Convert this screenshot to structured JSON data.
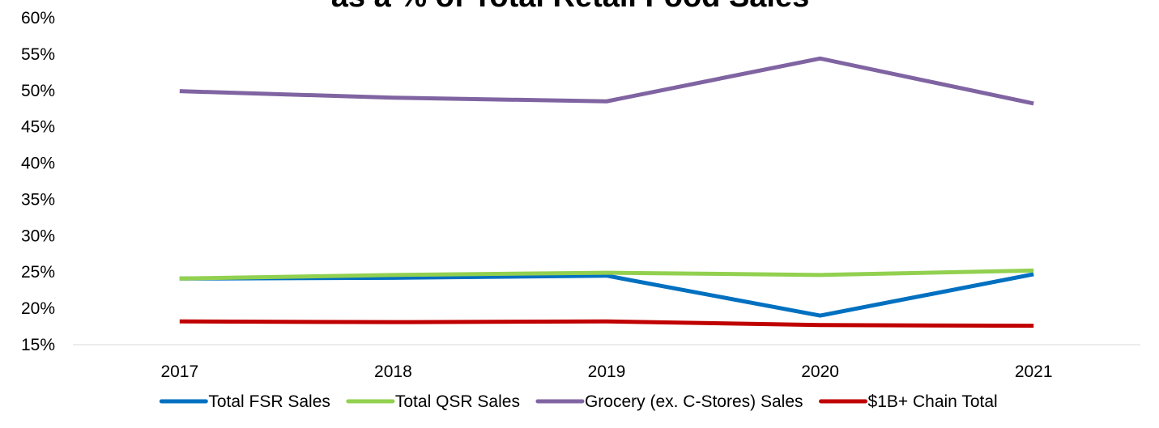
{
  "chart_data": {
    "type": "line",
    "title": "as a % of Total Retail Food Sales",
    "categories": [
      "2017",
      "2018",
      "2019",
      "2020",
      "2021"
    ],
    "series": [
      {
        "name": "Total FSR Sales",
        "color": "#0070c0",
        "values": [
          24.1,
          24.2,
          24.5,
          19.0,
          24.7
        ]
      },
      {
        "name": "Total QSR Sales",
        "color": "#92d050",
        "values": [
          24.1,
          24.6,
          24.9,
          24.6,
          25.2
        ]
      },
      {
        "name": "Grocery (ex. C-Stores) Sales",
        "color": "#8064a2",
        "values": [
          49.9,
          49.0,
          48.5,
          54.4,
          48.2
        ]
      },
      {
        "name": "$1B+ Chain Total",
        "color": "#c00000",
        "values": [
          18.2,
          18.1,
          18.2,
          17.7,
          17.6
        ]
      }
    ],
    "ylim": [
      15,
      60
    ],
    "yticks": [
      {
        "value": 15,
        "label": "15%"
      },
      {
        "value": 20,
        "label": "20%"
      },
      {
        "value": 25,
        "label": "25%"
      },
      {
        "value": 30,
        "label": "30%"
      },
      {
        "value": 35,
        "label": "35%"
      },
      {
        "value": 40,
        "label": "40%"
      },
      {
        "value": 45,
        "label": "45%"
      },
      {
        "value": 50,
        "label": "50%"
      },
      {
        "value": 55,
        "label": "55%"
      },
      {
        "value": 60,
        "label": "60%"
      }
    ],
    "grid": false,
    "legend": "bottom"
  }
}
